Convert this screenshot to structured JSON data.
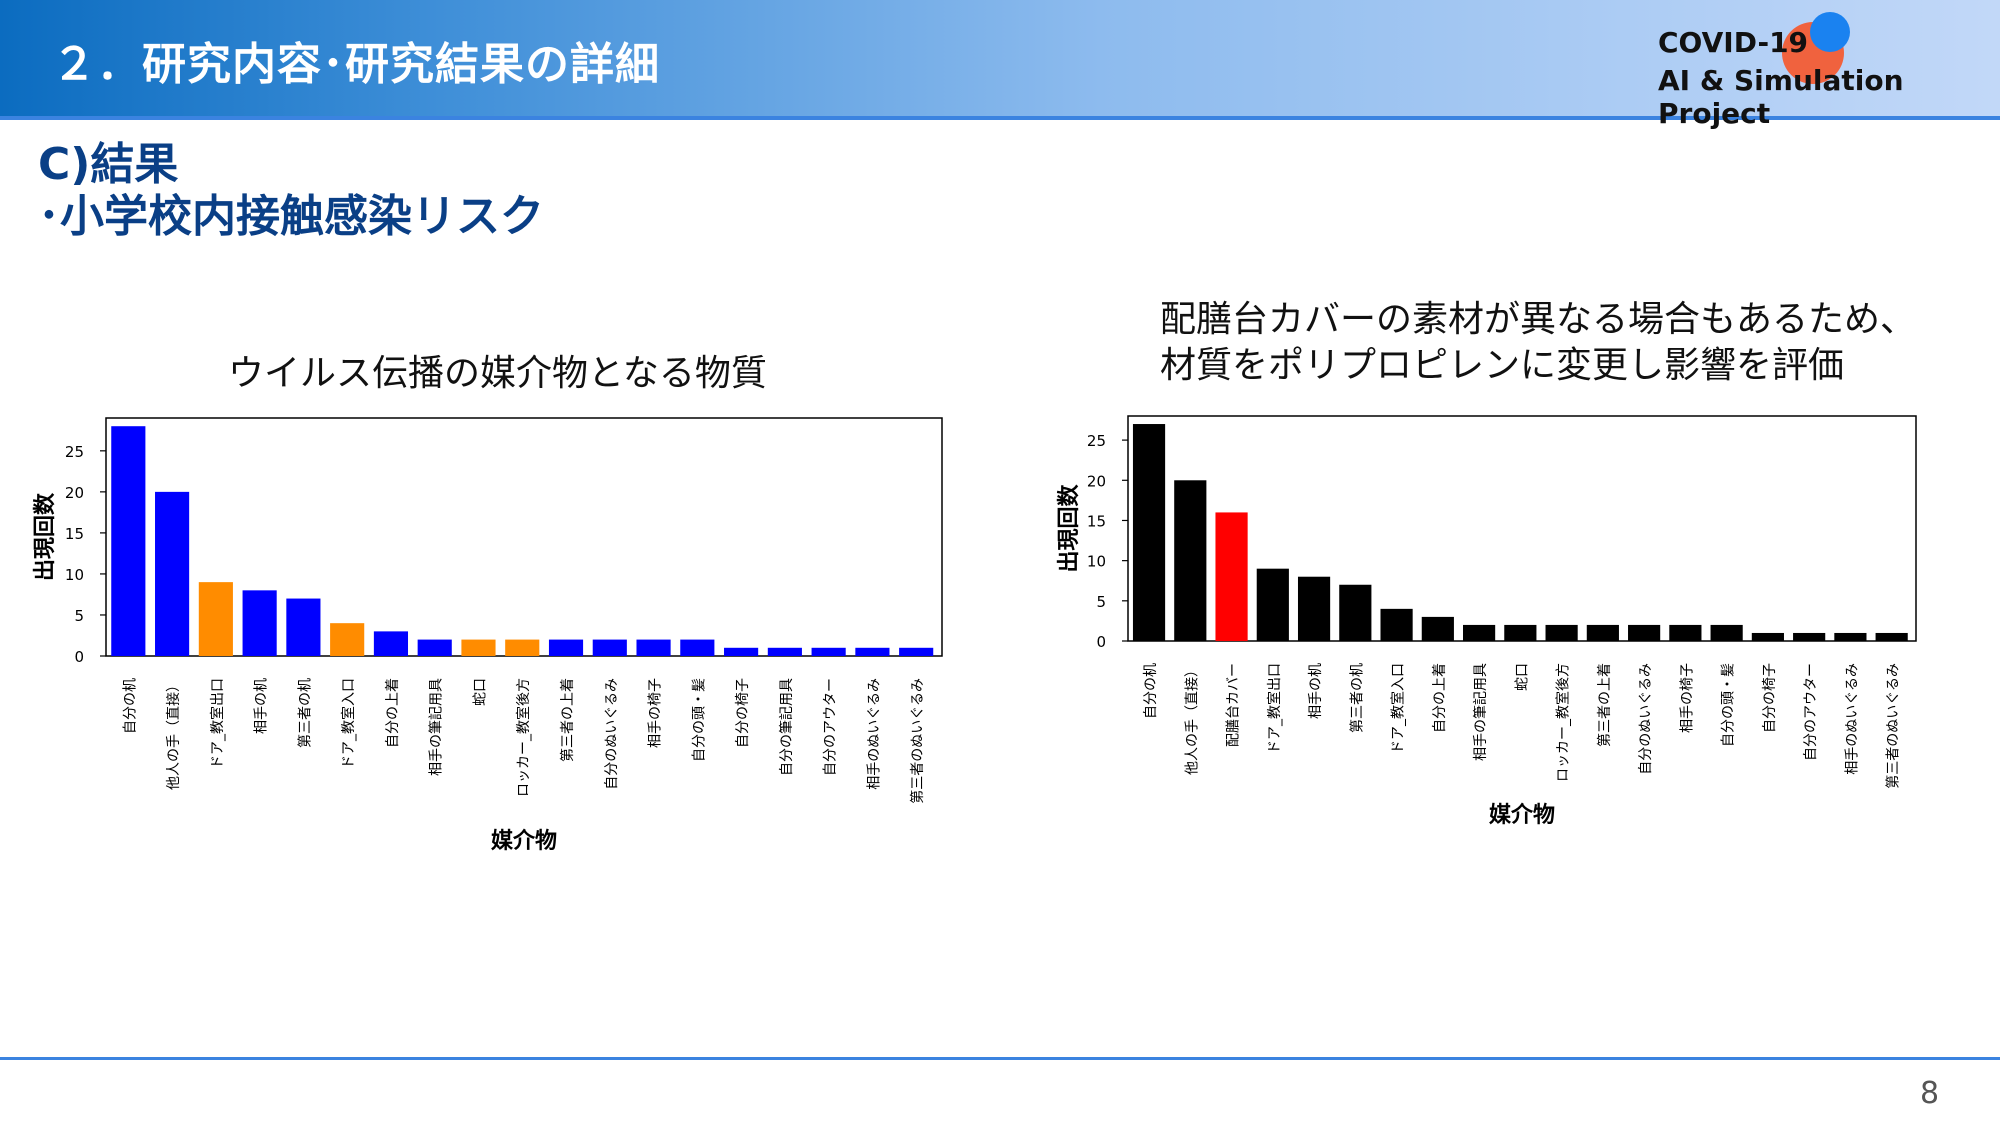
{
  "header": {
    "title": "２．研究内容･研究結果の詳細",
    "logo_line1": "COVID-19",
    "logo_line2": "AI & Simulation Project"
  },
  "section": {
    "title": "C)結果",
    "subtitle": "･小学校内接触感染リスク"
  },
  "chart1_caption": "ウイルス伝播の媒介物となる物質",
  "chart2_caption_line1": "配膳台カバーの素材が異なる場合もあるため、",
  "chart2_caption_line2": "材質をポリプロピレンに変更し影響を評価",
  "colors": {
    "blue": "#0000ff",
    "orange": "#ff8c00",
    "black": "#000000",
    "red": "#ff0000"
  },
  "page_number": "8",
  "chart_data": [
    {
      "type": "bar",
      "title": "ウイルス伝播の媒介物となる物質",
      "xlabel": "媒介物",
      "ylabel": "出現回数",
      "ylim": [
        0,
        29
      ],
      "yticks": [
        0,
        5,
        10,
        15,
        20,
        25
      ],
      "grid": false,
      "categories": [
        "自分の机",
        "他人の手（直接）",
        "ドア_教室出口",
        "相手の机",
        "第三者の机",
        "ドア_教室入口",
        "自分の上着",
        "相手の筆記用具",
        "蛇口",
        "ロッカー_教室後方",
        "第三者の上着",
        "自分のぬいぐるみ",
        "相手の椅子",
        "自分の頭・髪",
        "自分の椅子",
        "自分の筆記用具",
        "自分のアウター",
        "相手のぬいぐるみ",
        "第三者のぬいぐるみ"
      ],
      "values": [
        28,
        20,
        9,
        8,
        7,
        4,
        3,
        2,
        2,
        2,
        2,
        2,
        2,
        2,
        1,
        1,
        1,
        1,
        1
      ],
      "bar_colors": [
        "blue",
        "blue",
        "orange",
        "blue",
        "blue",
        "orange",
        "blue",
        "blue",
        "orange",
        "orange",
        "blue",
        "blue",
        "blue",
        "blue",
        "blue",
        "blue",
        "blue",
        "blue",
        "blue"
      ]
    },
    {
      "type": "bar",
      "title": "",
      "xlabel": "媒介物",
      "ylabel": "出現回数",
      "ylim": [
        0,
        28
      ],
      "yticks": [
        0,
        5,
        10,
        15,
        20,
        25
      ],
      "grid": false,
      "categories": [
        "自分の机",
        "他人の手（直接）",
        "配膳台カバー",
        "ドア_教室出口",
        "相手の机",
        "第三者の机",
        "ドア_教室入口",
        "自分の上着",
        "相手の筆記用具",
        "蛇口",
        "ロッカー_教室後方",
        "第三者の上着",
        "自分のぬいぐるみ",
        "相手の椅子",
        "自分の頭・髪",
        "自分の椅子",
        "自分のアウター",
        "相手のぬいぐるみ",
        "第三者のぬいぐるみ"
      ],
      "values": [
        27,
        20,
        16,
        9,
        8,
        7,
        4,
        3,
        2,
        2,
        2,
        2,
        2,
        2,
        2,
        1,
        1,
        1,
        1
      ],
      "bar_colors": [
        "black",
        "black",
        "red",
        "black",
        "black",
        "black",
        "black",
        "black",
        "black",
        "black",
        "black",
        "black",
        "black",
        "black",
        "black",
        "black",
        "black",
        "black",
        "black"
      ]
    }
  ]
}
